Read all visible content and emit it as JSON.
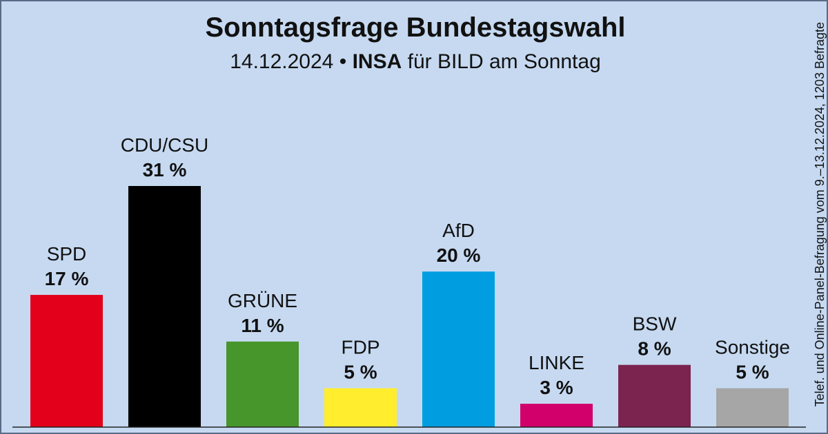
{
  "chart_data": {
    "type": "bar",
    "title": "Sonntagsfrage Bundestagswahl",
    "subtitle": {
      "date": "14.12.2024",
      "separator": "•",
      "institute": "INSA",
      "client": "für BILD am Sonntag"
    },
    "source_note": "Telef. und Online-Panel-Befragung vom 9.–13.12.2024, 1203 Befragte",
    "unit": "%",
    "categories": [
      "SPD",
      "CDU/CSU",
      "GRÜNE",
      "FDP",
      "AfD",
      "LINKE",
      "BSW",
      "Sonstige"
    ],
    "values": [
      17,
      31,
      11,
      5,
      20,
      3,
      8,
      5
    ],
    "value_labels": [
      "17 %",
      "31 %",
      "11 %",
      "5 %",
      "20 %",
      "3 %",
      "8 %",
      "5 %"
    ],
    "colors": [
      "#e3001b",
      "#000000",
      "#46962b",
      "#ffed2e",
      "#009ee0",
      "#d1006b",
      "#7b2450",
      "#a6a6a6"
    ],
    "ylim": [
      0,
      31
    ],
    "grid": false,
    "xlabel": "",
    "ylabel": ""
  }
}
